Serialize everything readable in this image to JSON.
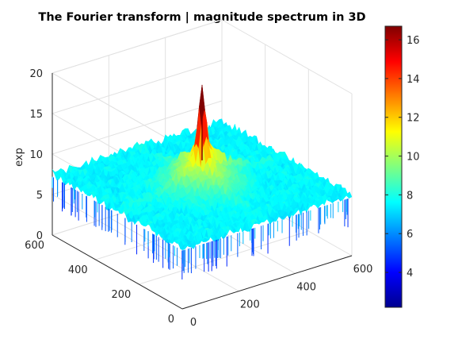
{
  "chart_data": {
    "type": "surface3d",
    "title": "The Fourier transform | magnitude spectrum in 3D",
    "xlabel": "",
    "ylabel": "",
    "zlabel": "exp",
    "x_range": [
      0,
      600
    ],
    "y_range": [
      0,
      600
    ],
    "z_range": [
      0,
      20
    ],
    "x_ticks": [
      "0",
      "200",
      "400",
      "600"
    ],
    "y_ticks": [
      "0",
      "200",
      "400",
      "600"
    ],
    "z_ticks": [
      "0",
      "5",
      "10",
      "15",
      "20"
    ],
    "surface": {
      "baseline_level": 7.5,
      "peak": {
        "x": 300,
        "y": 300,
        "z": 16.5
      },
      "features": "dense noisy magnitude spectrum with central peak and cross-shaped ridges along x and y through the center"
    },
    "grid": true,
    "colorbar": {
      "colormap": "jet",
      "range": [
        2.2,
        16.7
      ],
      "ticks": [
        "4",
        "6",
        "8",
        "10",
        "12",
        "14",
        "16"
      ],
      "placement": "right"
    }
  }
}
